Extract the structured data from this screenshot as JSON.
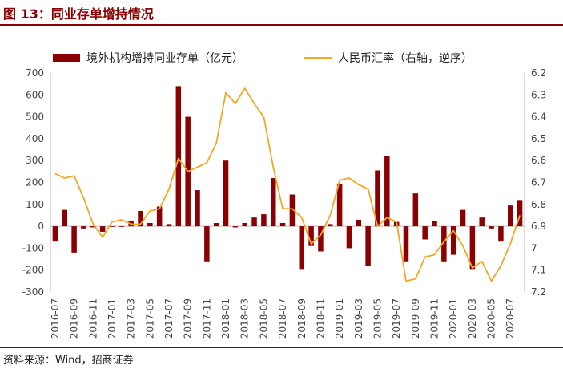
{
  "header": {
    "title": "图 13：同业存单增持情况"
  },
  "footer": {
    "source": "资料来源：Wind，招商证券"
  },
  "chart_data": {
    "type": "bar+line",
    "title": "图 13：同业存单增持情况",
    "categories": [
      "2016-07",
      "2016-08",
      "2016-09",
      "2016-10",
      "2016-11",
      "2016-12",
      "2017-01",
      "2017-02",
      "2017-03",
      "2017-04",
      "2017-05",
      "2017-06",
      "2017-07",
      "2017-08",
      "2017-09",
      "2017-10",
      "2017-11",
      "2017-12",
      "2018-01",
      "2018-02",
      "2018-03",
      "2018-04",
      "2018-05",
      "2018-06",
      "2018-07",
      "2018-08",
      "2018-09",
      "2018-10",
      "2018-11",
      "2018-12",
      "2019-01",
      "2019-02",
      "2019-03",
      "2019-04",
      "2019-05",
      "2019-06",
      "2019-07",
      "2019-08",
      "2019-09",
      "2019-10",
      "2019-11",
      "2019-12",
      "2020-01",
      "2020-02",
      "2020-03",
      "2020-04",
      "2020-05",
      "2020-06",
      "2020-07",
      "2020-08"
    ],
    "x_tick_labels": [
      "2016-07",
      "2016-09",
      "2016-11",
      "2017-01",
      "2017-03",
      "2017-05",
      "2017-07",
      "2017-09",
      "2017-11",
      "2018-01",
      "2018-03",
      "2018-05",
      "2018-07",
      "2018-09",
      "2018-11",
      "2019-01",
      "2019-03",
      "2019-05",
      "2019-07",
      "2019-09",
      "2019-11",
      "2020-01",
      "2020-03",
      "2020-05",
      "2020-07"
    ],
    "y_left": {
      "min": -300,
      "max": 700,
      "ticks": [
        700,
        600,
        500,
        400,
        300,
        200,
        100,
        0,
        -100,
        -200,
        -300
      ]
    },
    "y_right": {
      "min": 6.2,
      "max": 7.2,
      "inverted": true,
      "ticks": [
        "6.2",
        "6.3",
        "6.4",
        "6.5",
        "6.6",
        "6.7",
        "6.8",
        "6.9",
        "7",
        "7.1",
        "7.2"
      ]
    },
    "series": [
      {
        "name": "境外机构增持同业存单（亿元）",
        "type": "bar",
        "axis": "left",
        "color": "#8b0000",
        "values": [
          -70,
          75,
          -120,
          -10,
          -5,
          -25,
          0,
          0,
          25,
          70,
          15,
          90,
          10,
          640,
          500,
          165,
          -160,
          15,
          300,
          -5,
          15,
          40,
          55,
          220,
          15,
          145,
          -195,
          -90,
          -115,
          10,
          195,
          -100,
          30,
          -180,
          255,
          320,
          20,
          -160,
          150,
          -60,
          25,
          -160,
          -130,
          75,
          -195,
          40,
          -10,
          -70,
          95,
          120
        ]
      },
      {
        "name": "人民币汇率（右轴，逆序）",
        "type": "line",
        "axis": "right",
        "color": "#f5a623",
        "values": [
          6.66,
          6.68,
          6.67,
          6.77,
          6.89,
          6.95,
          6.88,
          6.87,
          6.89,
          6.89,
          6.83,
          6.82,
          6.73,
          6.59,
          6.65,
          6.63,
          6.61,
          6.52,
          6.29,
          6.34,
          6.27,
          6.34,
          6.4,
          6.63,
          6.82,
          6.82,
          6.86,
          6.98,
          6.94,
          6.85,
          6.69,
          6.68,
          6.71,
          6.73,
          6.9,
          6.86,
          6.88,
          7.15,
          7.14,
          7.04,
          7.03,
          6.97,
          6.92,
          6.99,
          7.09,
          7.06,
          7.15,
          7.08,
          6.98,
          6.85
        ]
      }
    ]
  }
}
